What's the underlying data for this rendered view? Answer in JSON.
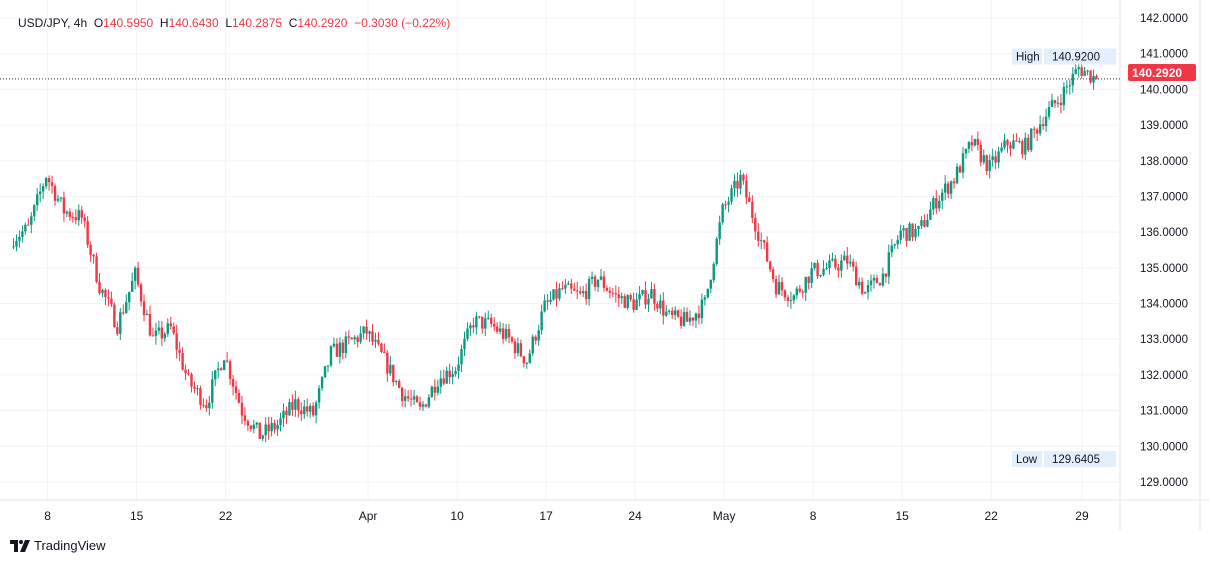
{
  "legend": {
    "symbol": "USD/JPY, 4h",
    "o_label": "O",
    "o": "140.5950",
    "h_label": "H",
    "h": "140.6430",
    "l_label": "L",
    "l": "140.2875",
    "c_label": "C",
    "c": "140.2920",
    "change": "−0.3030 (−0.22%)"
  },
  "brand": "TradingView",
  "colors": {
    "up": "#089981",
    "down": "#f23645",
    "grid": "#f0f3fa",
    "label_bg": "#e3effd"
  },
  "chart_data": {
    "type": "candlestick",
    "title": "USD/JPY, 4h",
    "ylim": [
      128.6,
      142.3
    ],
    "yticks": [
      "142.0000",
      "141.0000",
      "140.0000",
      "139.0000",
      "138.0000",
      "137.0000",
      "136.0000",
      "135.0000",
      "134.0000",
      "133.0000",
      "132.0000",
      "131.0000",
      "130.0000",
      "129.0000"
    ],
    "xticks": [
      "8",
      "15",
      "22",
      "Apr",
      "10",
      "17",
      "24",
      "May",
      "8",
      "15",
      "22",
      "29"
    ],
    "xtick_index": [
      2,
      7,
      12,
      20,
      25,
      30,
      35,
      40,
      45,
      50,
      55,
      60.1
    ],
    "daily_closes": [
      135.8,
      136.1,
      137.6,
      136.6,
      136.4,
      134.5,
      133.4,
      134.8,
      133.0,
      133.3,
      131.8,
      131.2,
      132.6,
      131.0,
      130.3,
      130.6,
      131.2,
      130.9,
      132.6,
      132.9,
      133.2,
      132.4,
      131.5,
      131.0,
      131.9,
      132.2,
      133.5,
      133.4,
      133.0,
      132.4,
      133.9,
      134.4,
      134.2,
      134.7,
      134.2,
      134.0,
      134.3,
      133.6,
      133.5,
      134.0,
      136.6,
      137.5,
      136.0,
      134.5,
      134.2,
      134.9,
      135.0,
      135.2,
      134.3,
      134.8,
      136.0,
      136.0,
      136.9,
      137.5,
      138.5,
      137.8,
      138.5,
      138.4,
      139.2,
      139.8,
      140.6,
      140.292
    ],
    "last_price": "140.2920",
    "high": {
      "label": "High",
      "value": "140.9200"
    },
    "low": {
      "label": "Low",
      "value": "129.6405"
    }
  }
}
